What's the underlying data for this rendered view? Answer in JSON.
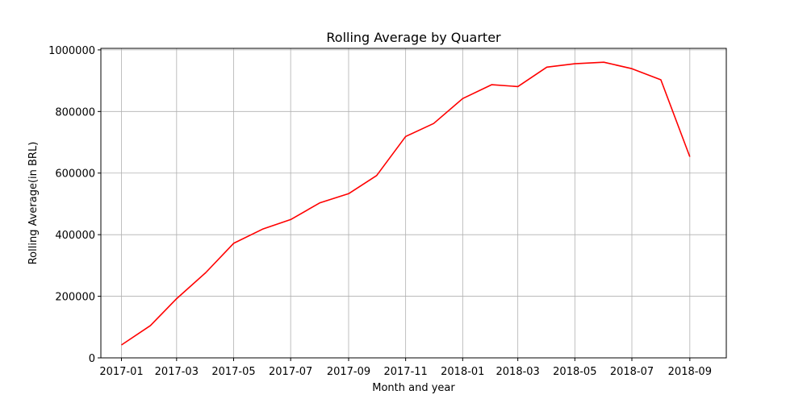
{
  "chart_data": {
    "type": "line",
    "title": "Rolling Average by Quarter",
    "xlabel": "Month and year",
    "ylabel": "Rolling Average(in BRL)",
    "x": [
      "2017-01",
      "2017-02",
      "2017-03",
      "2017-04",
      "2017-05",
      "2017-06",
      "2017-07",
      "2017-08",
      "2017-09",
      "2017-10",
      "2017-11",
      "2017-12",
      "2018-01",
      "2018-02",
      "2018-03",
      "2018-04",
      "2018-05",
      "2018-06",
      "2018-07",
      "2018-08",
      "2018-09"
    ],
    "series": [
      {
        "values": [
          42000,
          105000,
          192000,
          276000,
          372000,
          418000,
          449000,
          503000,
          533000,
          592000,
          719000,
          761000,
          842000,
          887000,
          881000,
          944000,
          955000,
          960000,
          939000,
          903000,
          653000
        ],
        "color": "#ff0000"
      }
    ],
    "xticks": [
      "2017-01",
      "2017-03",
      "2017-05",
      "2017-07",
      "2017-09",
      "2017-11",
      "2018-01",
      "2018-03",
      "2018-05",
      "2018-07",
      "2018-09"
    ],
    "xlim": [
      "2016-12-10",
      "2018-10-10"
    ],
    "yticks": [
      0,
      200000,
      400000,
      600000,
      800000,
      1000000
    ],
    "ylim": [
      0,
      1005000
    ],
    "grid": true,
    "legend": "none"
  }
}
